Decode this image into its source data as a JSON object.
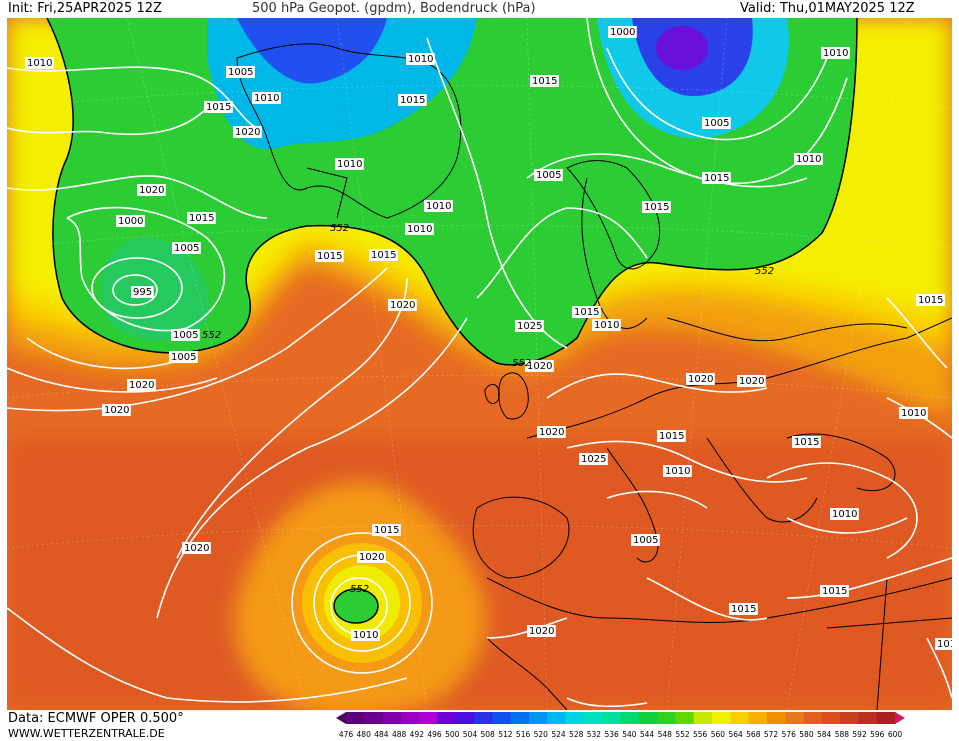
{
  "header": {
    "init": "Init: Fri,25APR2025 12Z",
    "title": "500 hPa Geopot. (gpdm), Bodendruck (hPa)",
    "valid": "Valid: Thu,01MAY2025 12Z"
  },
  "footer": {
    "source": "Data: ECMWF OPER 0.500°",
    "website": "WWW.WETTERZENTRALE.DE"
  },
  "legend": {
    "values": [
      "476",
      "480",
      "484",
      "488",
      "492",
      "496",
      "500",
      "504",
      "508",
      "512",
      "516",
      "520",
      "524",
      "528",
      "532",
      "536",
      "540",
      "544",
      "548",
      "552",
      "556",
      "560",
      "564",
      "568",
      "572",
      "576",
      "580",
      "584",
      "588",
      "592",
      "596",
      "600"
    ],
    "colors": [
      "#4b0066",
      "#5a0078",
      "#6a0090",
      "#8000a8",
      "#9a00c0",
      "#b000d8",
      "#6b00d8",
      "#4a10e0",
      "#2a30e8",
      "#1050f0",
      "#0070f0",
      "#0095f0",
      "#00b8f0",
      "#00d4e0",
      "#00e0c0",
      "#00e0a0",
      "#00d870",
      "#10d040",
      "#30d020",
      "#60d800",
      "#c8e800",
      "#f0f000",
      "#f8d000",
      "#f8b000",
      "#f09000",
      "#e87820",
      "#e06020",
      "#d85020",
      "#c84020",
      "#b83020",
      "#a82020",
      "#d01868"
    ]
  },
  "isobars": [
    {
      "id": "i1",
      "label": "1010"
    },
    {
      "id": "i2",
      "label": "1005"
    },
    {
      "id": "i3",
      "label": "1010"
    },
    {
      "id": "i4",
      "label": "1010"
    },
    {
      "id": "i5",
      "label": "1015"
    },
    {
      "id": "i6",
      "label": "1020"
    },
    {
      "id": "i7",
      "label": "1015"
    },
    {
      "id": "i8",
      "label": "1000"
    },
    {
      "id": "i9",
      "label": "1010"
    },
    {
      "id": "i10",
      "label": "1015"
    },
    {
      "id": "i11",
      "label": "1005"
    },
    {
      "id": "i12",
      "label": "1010"
    },
    {
      "id": "i13",
      "label": "1015"
    },
    {
      "id": "i14",
      "label": "1020"
    },
    {
      "id": "i15",
      "label": "1010"
    },
    {
      "id": "i16",
      "label": "1015"
    },
    {
      "id": "i17",
      "label": "1005"
    },
    {
      "id": "i18",
      "label": "995"
    },
    {
      "id": "i19",
      "label": "1000"
    },
    {
      "id": "i20",
      "label": "1005"
    },
    {
      "id": "i21",
      "label": "1010"
    },
    {
      "id": "i22",
      "label": "1015"
    },
    {
      "id": "i23",
      "label": "1010"
    },
    {
      "id": "i24",
      "label": "1015"
    },
    {
      "id": "i25",
      "label": "1015"
    },
    {
      "id": "i26",
      "label": "1020"
    },
    {
      "id": "i27",
      "label": "1025"
    },
    {
      "id": "i28",
      "label": "1005"
    },
    {
      "id": "i29",
      "label": "1015"
    },
    {
      "id": "i30",
      "label": "1005"
    },
    {
      "id": "i31",
      "label": "1010"
    },
    {
      "id": "i32",
      "label": "1020"
    },
    {
      "id": "i33",
      "label": "1020"
    },
    {
      "id": "i34",
      "label": "1020"
    },
    {
      "id": "i35",
      "label": "1020"
    },
    {
      "id": "i36",
      "label": "1020"
    },
    {
      "id": "i37",
      "label": "1020"
    },
    {
      "id": "i38",
      "label": "1015"
    },
    {
      "id": "i39",
      "label": "1010"
    },
    {
      "id": "i40",
      "label": "1015"
    },
    {
      "id": "i41",
      "label": "1010"
    },
    {
      "id": "i42",
      "label": "1025"
    },
    {
      "id": "i43",
      "label": "1015"
    },
    {
      "id": "i44",
      "label": "1010"
    },
    {
      "id": "i45",
      "label": "1005"
    },
    {
      "id": "i46",
      "label": "1020"
    },
    {
      "id": "i47",
      "label": "1015"
    },
    {
      "id": "i48",
      "label": "1020"
    },
    {
      "id": "i49",
      "label": "1015"
    },
    {
      "id": "i50",
      "label": "1010"
    },
    {
      "id": "i51",
      "label": "1015"
    },
    {
      "id": "i52",
      "label": "1020"
    },
    {
      "id": "i53",
      "label": "1015"
    }
  ],
  "geopotential_labels": [
    {
      "id": "g1",
      "label": "552"
    },
    {
      "id": "g2",
      "label": "552"
    },
    {
      "id": "g3",
      "label": "552"
    },
    {
      "id": "g4",
      "label": "552"
    },
    {
      "id": "g5",
      "label": "552"
    }
  ]
}
